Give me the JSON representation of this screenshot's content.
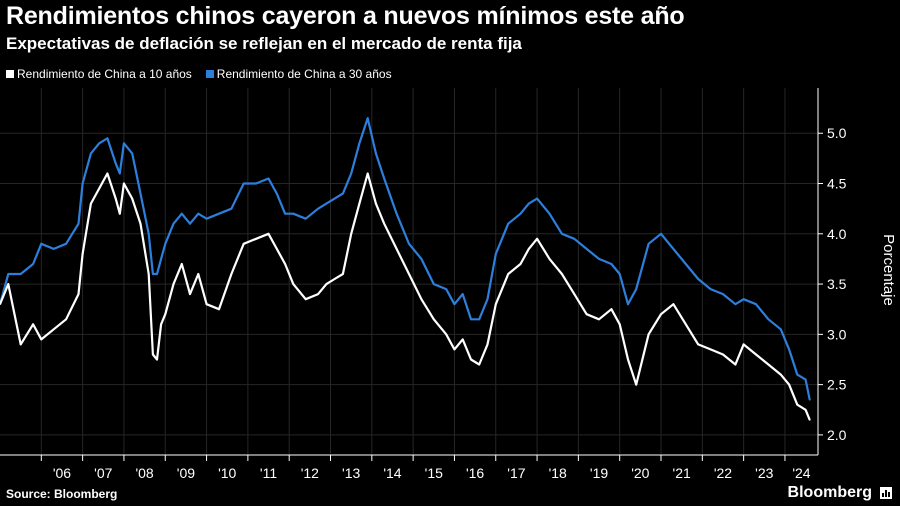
{
  "header": {
    "title": "Rendimientos chinos cayeron a nuevos mínimos este año",
    "subtitle": "Expectativas de deflación se reflejan en el mercado de renta fija"
  },
  "footer": {
    "source": "Source: Bloomberg",
    "brand": "Bloomberg"
  },
  "colors": {
    "background": "#000000",
    "series_10y": "#ffffff",
    "series_30y": "#2d7fdc",
    "grid": "#2a2a2a"
  },
  "chart_data": {
    "type": "line",
    "title": "Rendimientos chinos cayeron a nuevos mínimos este año",
    "subtitle": "Expectativas de deflación se reflejan en el mercado de renta fija",
    "xlabel": "",
    "ylabel": "Porcentaje",
    "ylim": [
      1.8,
      5.45
    ],
    "xlim": [
      2005.0,
      2024.8
    ],
    "y_ticks": [
      2.0,
      2.5,
      3.0,
      3.5,
      4.0,
      4.5,
      5.0
    ],
    "x_ticks": [
      "'06",
      "'07",
      "'08",
      "'09",
      "'10",
      "'11",
      "'12",
      "'13",
      "'14",
      "'15",
      "'16",
      "'17",
      "'18",
      "'19",
      "'20",
      "'21",
      "'22",
      "'23",
      "'24"
    ],
    "grid": true,
    "legend_position": "top-left",
    "series": [
      {
        "name": "Rendimiento de China a 10 años",
        "color": "#ffffff",
        "x": [
          2005.0,
          2005.2,
          2005.5,
          2005.8,
          2006.0,
          2006.3,
          2006.6,
          2006.9,
          2007.0,
          2007.2,
          2007.4,
          2007.6,
          2007.8,
          2007.9,
          2008.0,
          2008.2,
          2008.4,
          2008.6,
          2008.7,
          2008.8,
          2008.9,
          2009.0,
          2009.2,
          2009.4,
          2009.6,
          2009.8,
          2010.0,
          2010.3,
          2010.6,
          2010.9,
          2011.2,
          2011.5,
          2011.7,
          2011.9,
          2012.1,
          2012.4,
          2012.7,
          2012.9,
          2013.1,
          2013.3,
          2013.5,
          2013.7,
          2013.9,
          2014.1,
          2014.3,
          2014.6,
          2014.9,
          2015.2,
          2015.5,
          2015.8,
          2016.0,
          2016.2,
          2016.4,
          2016.6,
          2016.8,
          2017.0,
          2017.3,
          2017.6,
          2017.8,
          2018.0,
          2018.3,
          2018.6,
          2018.9,
          2019.2,
          2019.5,
          2019.8,
          2020.0,
          2020.2,
          2020.4,
          2020.7,
          2021.0,
          2021.3,
          2021.6,
          2021.9,
          2022.2,
          2022.5,
          2022.8,
          2023.0,
          2023.3,
          2023.6,
          2023.9,
          2024.1,
          2024.3,
          2024.5,
          2024.6
        ],
        "values": [
          3.3,
          3.5,
          2.9,
          3.1,
          2.95,
          3.05,
          3.15,
          3.4,
          3.8,
          4.3,
          4.45,
          4.6,
          4.35,
          4.2,
          4.5,
          4.35,
          4.1,
          3.6,
          2.8,
          2.75,
          3.1,
          3.2,
          3.5,
          3.7,
          3.4,
          3.6,
          3.3,
          3.25,
          3.6,
          3.9,
          3.95,
          4.0,
          3.85,
          3.7,
          3.5,
          3.35,
          3.4,
          3.5,
          3.55,
          3.6,
          4.0,
          4.3,
          4.6,
          4.3,
          4.1,
          3.85,
          3.6,
          3.35,
          3.15,
          3.0,
          2.85,
          2.95,
          2.75,
          2.7,
          2.9,
          3.3,
          3.6,
          3.7,
          3.85,
          3.95,
          3.75,
          3.6,
          3.4,
          3.2,
          3.15,
          3.25,
          3.1,
          2.75,
          2.5,
          3.0,
          3.2,
          3.3,
          3.1,
          2.9,
          2.85,
          2.8,
          2.7,
          2.9,
          2.8,
          2.7,
          2.6,
          2.5,
          2.3,
          2.25,
          2.15
        ]
      },
      {
        "name": "Rendimiento de China a 30 años",
        "color": "#2d7fdc",
        "x": [
          2005.0,
          2005.2,
          2005.5,
          2005.8,
          2006.0,
          2006.3,
          2006.6,
          2006.9,
          2007.0,
          2007.2,
          2007.4,
          2007.6,
          2007.8,
          2007.9,
          2008.0,
          2008.2,
          2008.4,
          2008.6,
          2008.7,
          2008.8,
          2008.9,
          2009.0,
          2009.2,
          2009.4,
          2009.6,
          2009.8,
          2010.0,
          2010.3,
          2010.6,
          2010.9,
          2011.2,
          2011.5,
          2011.7,
          2011.9,
          2012.1,
          2012.4,
          2012.7,
          2012.9,
          2013.1,
          2013.3,
          2013.5,
          2013.7,
          2013.9,
          2014.1,
          2014.3,
          2014.6,
          2014.9,
          2015.2,
          2015.5,
          2015.8,
          2016.0,
          2016.2,
          2016.4,
          2016.6,
          2016.8,
          2017.0,
          2017.3,
          2017.6,
          2017.8,
          2018.0,
          2018.3,
          2018.6,
          2018.9,
          2019.2,
          2019.5,
          2019.8,
          2020.0,
          2020.2,
          2020.4,
          2020.7,
          2021.0,
          2021.3,
          2021.6,
          2021.9,
          2022.2,
          2022.5,
          2022.8,
          2023.0,
          2023.3,
          2023.6,
          2023.9,
          2024.1,
          2024.3,
          2024.5,
          2024.6
        ],
        "values": [
          3.3,
          3.6,
          3.6,
          3.7,
          3.9,
          3.85,
          3.9,
          4.1,
          4.5,
          4.8,
          4.9,
          4.95,
          4.7,
          4.6,
          4.9,
          4.8,
          4.4,
          4.0,
          3.6,
          3.6,
          3.75,
          3.9,
          4.1,
          4.2,
          4.1,
          4.2,
          4.15,
          4.2,
          4.25,
          4.5,
          4.5,
          4.55,
          4.4,
          4.2,
          4.2,
          4.15,
          4.25,
          4.3,
          4.35,
          4.4,
          4.6,
          4.9,
          5.15,
          4.8,
          4.55,
          4.2,
          3.9,
          3.75,
          3.5,
          3.45,
          3.3,
          3.4,
          3.15,
          3.15,
          3.35,
          3.8,
          4.1,
          4.2,
          4.3,
          4.35,
          4.2,
          4.0,
          3.95,
          3.85,
          3.75,
          3.7,
          3.6,
          3.3,
          3.45,
          3.9,
          4.0,
          3.85,
          3.7,
          3.55,
          3.45,
          3.4,
          3.3,
          3.35,
          3.3,
          3.15,
          3.05,
          2.85,
          2.6,
          2.55,
          2.35
        ]
      }
    ]
  }
}
